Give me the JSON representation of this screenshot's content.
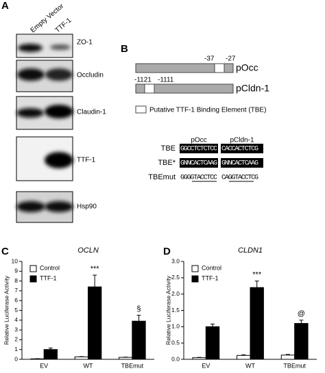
{
  "panel_a": {
    "label": "A",
    "columns": [
      "Empty Vector",
      "TTF-1"
    ],
    "blots": [
      "ZO-1",
      "Occludin",
      "Claudin-1",
      "TTF-1",
      "Hsp90"
    ]
  },
  "panel_b": {
    "label": "B",
    "constructs": [
      {
        "name": "pOcc",
        "positions": [
          "-37",
          "-27"
        ]
      },
      {
        "name": "pCldn-1",
        "positions": [
          "-1121",
          "-1111"
        ]
      }
    ],
    "legend": "Putative TTF-1 Binding Element (TBE)",
    "sequences": {
      "columns": [
        "pOcc",
        "pCldn-1"
      ],
      "rows": [
        {
          "label": "TBE",
          "values": [
            "GGCCTCTCTCC",
            "CACCACTCTCG"
          ]
        },
        {
          "label": "TBE*",
          "values": [
            "GNNCACTCAAG",
            "GNNCACTCAAG"
          ]
        },
        {
          "label": "TBEmut",
          "values": [
            "GGGGTACCTCC",
            "CAGGTACCTCG"
          ]
        }
      ]
    }
  },
  "chart_data": [
    {
      "type": "bar",
      "panel_label": "C",
      "title": "OCLN",
      "y_label": "Relative Luciferase Activity",
      "categories": [
        "EV",
        "WT",
        "TBEmut"
      ],
      "series": [
        {
          "name": "Control",
          "color": "#ffffff",
          "values": [
            0.05,
            0.25,
            0.2
          ],
          "errors": [
            0.02,
            0.03,
            0.03
          ]
        },
        {
          "name": "TTF-1",
          "color": "#000000",
          "values": [
            1.0,
            7.4,
            3.9
          ],
          "errors": [
            0.15,
            1.2,
            0.6
          ]
        }
      ],
      "annotations": [
        null,
        "***",
        "§"
      ],
      "legend": "upper left",
      "ylim": [
        0,
        10
      ],
      "yticks": [
        0,
        1,
        2,
        3,
        4,
        5,
        6,
        7,
        8,
        9,
        10
      ]
    },
    {
      "type": "bar",
      "panel_label": "D",
      "title": "CLDN1",
      "y_label": "Relative Luciferase Activity",
      "categories": [
        "EV",
        "WT",
        "TBEmut"
      ],
      "series": [
        {
          "name": "Control",
          "color": "#ffffff",
          "values": [
            0.05,
            0.12,
            0.13
          ],
          "errors": [
            0.01,
            0.02,
            0.02
          ]
        },
        {
          "name": "TTF-1",
          "color": "#000000",
          "values": [
            1.0,
            2.2,
            1.1
          ],
          "errors": [
            0.08,
            0.2,
            0.1
          ]
        }
      ],
      "annotations": [
        null,
        "***",
        "@"
      ],
      "legend": "upper left",
      "ylim": [
        0,
        3.0
      ],
      "yticks": [
        {
          "value": 0,
          "label": "0.0"
        },
        0.5,
        {
          "value": 1,
          "label": "1.0"
        },
        1.5,
        {
          "value": 2,
          "label": "2.0"
        },
        2.5,
        {
          "value": 3,
          "label": "3.0"
        }
      ]
    }
  ]
}
